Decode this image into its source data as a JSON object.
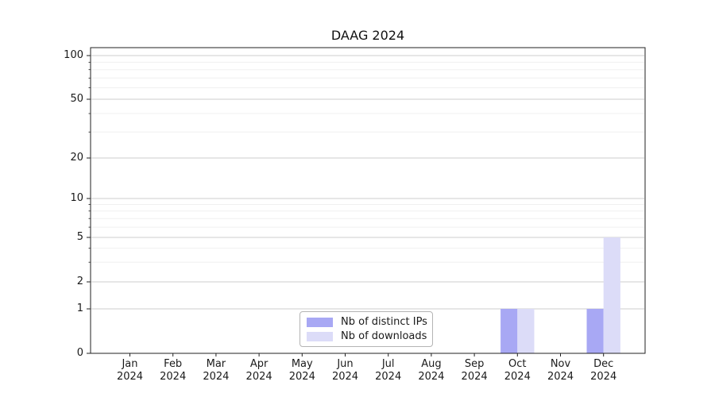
{
  "chart_data": {
    "type": "bar",
    "title": "DAAG 2024",
    "categories": [
      "Jan",
      "Feb",
      "Mar",
      "Apr",
      "May",
      "Jun",
      "Jul",
      "Aug",
      "Sep",
      "Oct",
      "Nov",
      "Dec"
    ],
    "year_label": "2024",
    "series": [
      {
        "name": "Nb of distinct IPs",
        "color": "#a8a8f4",
        "values": [
          0,
          0,
          0,
          0,
          0,
          0,
          0,
          0,
          0,
          1,
          0,
          1
        ]
      },
      {
        "name": "Nb of downloads",
        "color": "#dcdcf8",
        "values": [
          0,
          0,
          0,
          0,
          0,
          0,
          0,
          0,
          0,
          1,
          0,
          5
        ]
      }
    ],
    "xlabel": "",
    "ylabel": "",
    "y_axis": {
      "scale": "log-like (1-2-5 steps, linear below 1)",
      "major_ticks": [
        100,
        50,
        20,
        10,
        5,
        2,
        1,
        0
      ],
      "minor_gridlines": [
        3,
        4,
        6,
        7,
        8,
        9,
        30,
        40,
        60,
        70,
        80,
        90
      ],
      "ylim": [
        0,
        110
      ]
    },
    "grid": "horizontal",
    "legend_position": "bottom-center",
    "colors": {
      "major_gridline": "#cccccc",
      "minor_gridline": "#f0f0f0",
      "axis_spine": "#222222",
      "tick_text": "#1a1a1a",
      "legend_border": "#b4b4b4",
      "background": "#ffffff"
    }
  }
}
